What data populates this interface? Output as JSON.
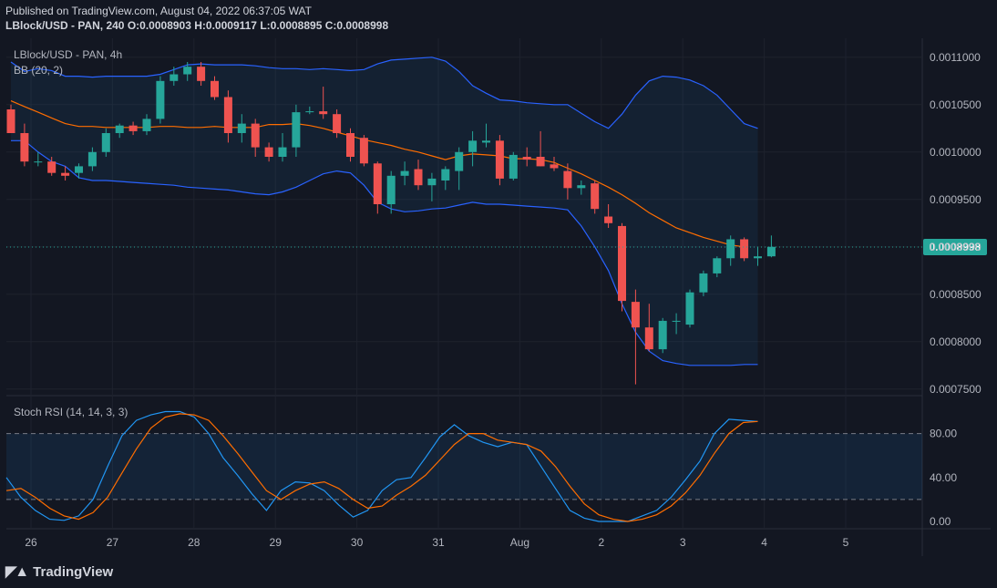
{
  "header": {
    "published": "Published on TradingView.com, August 04, 2022 06:37:05 WAT",
    "symbol_line": "LBlock/USD - PAN, 240",
    "ohlc": {
      "O": "0.0008903",
      "H": "0.0009117",
      "L": "0.0008895",
      "C": "0.0008998"
    }
  },
  "legend": {
    "symbol": "LBlock/USD - PAN, 4h",
    "bb": "BB (20, 2)",
    "stoch": "Stoch RSI (14, 14, 3, 3)"
  },
  "price_tag": "0.0008998",
  "brand": "TradingView",
  "colors": {
    "up": "#26a69a",
    "down": "#ef5350",
    "bb_band": "#2962ff",
    "bb_basis": "#ff6d00",
    "k_line": "#2196f3",
    "d_line": "#ff6d00"
  },
  "chart_data": [
    {
      "type": "candlestick",
      "title": "LBlock/USD - PAN, 4h",
      "x_tick_labels": [
        "26",
        "27",
        "28",
        "29",
        "30",
        "31",
        "Aug",
        "2",
        "3",
        "4",
        "5"
      ],
      "y_tick_labels": [
        "0.0011000",
        "0.0010500",
        "0.0010000",
        "0.0009500",
        "0.0009000",
        "0.0008500",
        "0.0008000",
        "0.0007500"
      ],
      "ylim": [
        0.000745,
        0.00112
      ],
      "last_price": 0.0008998,
      "candles": [
        {
          "o": 0.001045,
          "h": 0.00105,
          "l": 0.00102,
          "c": 0.00102
        },
        {
          "o": 0.00102,
          "h": 0.00103,
          "l": 0.000985,
          "c": 0.00099
        },
        {
          "o": 0.00099,
          "h": 0.001,
          "l": 0.000985,
          "c": 0.00099
        },
        {
          "o": 0.00099,
          "h": 0.000995,
          "l": 0.000975,
          "c": 0.000978
        },
        {
          "o": 0.000978,
          "h": 0.000985,
          "l": 0.00097,
          "c": 0.000975
        },
        {
          "o": 0.000978,
          "h": 0.000988,
          "l": 0.000972,
          "c": 0.000985
        },
        {
          "o": 0.000985,
          "h": 0.001005,
          "l": 0.00098,
          "c": 0.001
        },
        {
          "o": 0.001,
          "h": 0.001025,
          "l": 0.000995,
          "c": 0.00102
        },
        {
          "o": 0.00102,
          "h": 0.00103,
          "l": 0.001015,
          "c": 0.001028
        },
        {
          "o": 0.001028,
          "h": 0.001032,
          "l": 0.001018,
          "c": 0.001022
        },
        {
          "o": 0.001022,
          "h": 0.00104,
          "l": 0.001018,
          "c": 0.001035
        },
        {
          "o": 0.001035,
          "h": 0.00108,
          "l": 0.00103,
          "c": 0.001075
        },
        {
          "o": 0.001075,
          "h": 0.00109,
          "l": 0.00107,
          "c": 0.001082
        },
        {
          "o": 0.001082,
          "h": 0.001095,
          "l": 0.001075,
          "c": 0.00109
        },
        {
          "o": 0.00109,
          "h": 0.001095,
          "l": 0.00107,
          "c": 0.001075
        },
        {
          "o": 0.001075,
          "h": 0.00108,
          "l": 0.001055,
          "c": 0.001058
        },
        {
          "o": 0.001058,
          "h": 0.001065,
          "l": 0.00101,
          "c": 0.00102
        },
        {
          "o": 0.00102,
          "h": 0.00104,
          "l": 0.00101,
          "c": 0.00103
        },
        {
          "o": 0.00103,
          "h": 0.001035,
          "l": 0.000995,
          "c": 0.001005
        },
        {
          "o": 0.001005,
          "h": 0.00101,
          "l": 0.00099,
          "c": 0.000995
        },
        {
          "o": 0.000995,
          "h": 0.00102,
          "l": 0.00099,
          "c": 0.001005
        },
        {
          "o": 0.001005,
          "h": 0.00105,
          "l": 0.000995,
          "c": 0.001042
        },
        {
          "o": 0.001042,
          "h": 0.001048,
          "l": 0.00104,
          "c": 0.001043
        },
        {
          "o": 0.001043,
          "h": 0.001069,
          "l": 0.001035,
          "c": 0.00104
        },
        {
          "o": 0.00104,
          "h": 0.001045,
          "l": 0.001015,
          "c": 0.00102
        },
        {
          "o": 0.00102,
          "h": 0.001025,
          "l": 0.00099,
          "c": 0.000995
        },
        {
          "o": 0.001015,
          "h": 0.001018,
          "l": 0.000985,
          "c": 0.000988
        },
        {
          "o": 0.000988,
          "h": 0.00099,
          "l": 0.000935,
          "c": 0.000945
        },
        {
          "o": 0.000945,
          "h": 0.00098,
          "l": 0.000935,
          "c": 0.000975
        },
        {
          "o": 0.000975,
          "h": 0.00099,
          "l": 0.000965,
          "c": 0.00098
        },
        {
          "o": 0.000982,
          "h": 0.000992,
          "l": 0.00096,
          "c": 0.000965
        },
        {
          "o": 0.000965,
          "h": 0.000978,
          "l": 0.000948,
          "c": 0.000972
        },
        {
          "o": 0.00097,
          "h": 0.000985,
          "l": 0.00096,
          "c": 0.000982
        },
        {
          "o": 0.00098,
          "h": 0.001005,
          "l": 0.00096,
          "c": 0.001
        },
        {
          "o": 0.001,
          "h": 0.001022,
          "l": 0.000985,
          "c": 0.001012
        },
        {
          "o": 0.00101,
          "h": 0.00103,
          "l": 0.001005,
          "c": 0.001012
        },
        {
          "o": 0.001012,
          "h": 0.001018,
          "l": 0.000965,
          "c": 0.000972
        },
        {
          "o": 0.000972,
          "h": 0.001,
          "l": 0.00097,
          "c": 0.000997
        },
        {
          "o": 0.000995,
          "h": 0.001005,
          "l": 0.000985,
          "c": 0.000992
        },
        {
          "o": 0.000995,
          "h": 0.001022,
          "l": 0.000985,
          "c": 0.000985
        },
        {
          "o": 0.000987,
          "h": 0.000995,
          "l": 0.00098,
          "c": 0.000983
        },
        {
          "o": 0.00098,
          "h": 0.000988,
          "l": 0.00095,
          "c": 0.000962
        },
        {
          "o": 0.000962,
          "h": 0.00097,
          "l": 0.000955,
          "c": 0.000965
        },
        {
          "o": 0.000967,
          "h": 0.00097,
          "l": 0.000935,
          "c": 0.00094
        },
        {
          "o": 0.000932,
          "h": 0.000945,
          "l": 0.00092,
          "c": 0.000925
        },
        {
          "o": 0.000922,
          "h": 0.000925,
          "l": 0.000832,
          "c": 0.000843
        },
        {
          "o": 0.000842,
          "h": 0.000855,
          "l": 0.000755,
          "c": 0.000815
        },
        {
          "o": 0.000815,
          "h": 0.00084,
          "l": 0.00079,
          "c": 0.000792
        },
        {
          "o": 0.000792,
          "h": 0.000825,
          "l": 0.000788,
          "c": 0.000822
        },
        {
          "o": 0.000822,
          "h": 0.00083,
          "l": 0.000808,
          "c": 0.000822
        },
        {
          "o": 0.000818,
          "h": 0.000855,
          "l": 0.000815,
          "c": 0.000852
        },
        {
          "o": 0.000852,
          "h": 0.000875,
          "l": 0.000848,
          "c": 0.000872
        },
        {
          "o": 0.000872,
          "h": 0.00089,
          "l": 0.000868,
          "c": 0.000888
        },
        {
          "o": 0.000888,
          "h": 0.000912,
          "l": 0.00088,
          "c": 0.000908
        },
        {
          "o": 0.000908,
          "h": 0.00091,
          "l": 0.000885,
          "c": 0.000888
        },
        {
          "o": 0.000888,
          "h": 0.0009,
          "l": 0.00088,
          "c": 0.00089
        },
        {
          "o": 0.00089,
          "h": 0.000912,
          "l": 0.000889,
          "c": 0.0009
        }
      ],
      "bb_upper": [
        0.001095,
        0.001085,
        0.001088,
        0.001086,
        0.00108,
        0.00108,
        0.001079,
        0.00108,
        0.00108,
        0.00108,
        0.00108,
        0.001082,
        0.001087,
        0.001092,
        0.001093,
        0.001092,
        0.001092,
        0.001092,
        0.001091,
        0.001089,
        0.001088,
        0.001088,
        0.001087,
        0.001088,
        0.001087,
        0.001086,
        0.001087,
        0.001093,
        0.001097,
        0.001098,
        0.001099,
        0.0011,
        0.001096,
        0.001085,
        0.00107,
        0.001062,
        0.001055,
        0.001054,
        0.001052,
        0.001051,
        0.00105,
        0.00105,
        0.001041,
        0.001032,
        0.001025,
        0.00104,
        0.00106,
        0.001075,
        0.00108,
        0.001079,
        0.001076,
        0.00107,
        0.00106,
        0.001045,
        0.00103,
        0.001025
      ],
      "bb_basis": [
        0.001054,
        0.001048,
        0.001042,
        0.001036,
        0.00103,
        0.001027,
        0.001027,
        0.001026,
        0.001026,
        0.001026,
        0.001026,
        0.001027,
        0.001027,
        0.001026,
        0.001026,
        0.001027,
        0.001026,
        0.001026,
        0.001026,
        0.001029,
        0.001029,
        0.00103,
        0.001028,
        0.001025,
        0.001021,
        0.001017,
        0.001013,
        0.00101,
        0.001007,
        0.001003,
        0.001,
        0.000996,
        0.000992,
        0.000996,
        0.000998,
        0.000997,
        0.000996,
        0.000993,
        0.000993,
        0.000992,
        0.000989,
        0.000983,
        0.000977,
        0.00097,
        0.000963,
        0.000955,
        0.000946,
        0.000936,
        0.000928,
        0.00092,
        0.000915,
        0.00091,
        0.000906,
        0.000902,
        0.0009
      ],
      "bb_lower": [
        0.001012,
        0.001012,
        0.001,
        0.00099,
        0.000985,
        0.000973,
        0.00097,
        0.00097,
        0.000969,
        0.000968,
        0.000967,
        0.000966,
        0.000965,
        0.000963,
        0.000962,
        0.000961,
        0.00096,
        0.000958,
        0.000956,
        0.000955,
        0.000958,
        0.000963,
        0.00097,
        0.000977,
        0.00098,
        0.000978,
        0.000965,
        0.000947,
        0.00094,
        0.000937,
        0.000938,
        0.00094,
        0.000941,
        0.000944,
        0.000947,
        0.000945,
        0.000945,
        0.000944,
        0.000943,
        0.000942,
        0.000941,
        0.000939,
        0.000922,
        0.0009,
        0.000875,
        0.00084,
        0.00081,
        0.00079,
        0.00078,
        0.000777,
        0.000775,
        0.000775,
        0.000775,
        0.000775,
        0.000776,
        0.000776
      ]
    },
    {
      "type": "line",
      "title": "Stoch RSI (14, 14, 3, 3)",
      "y_tick_labels": [
        "80.00",
        "40.00",
        "0.00"
      ],
      "ylim": [
        -5,
        112
      ],
      "bands": [
        20,
        80
      ],
      "series": [
        {
          "values": [
            40,
            22,
            10,
            2,
            1,
            5,
            20,
            50,
            78,
            92,
            97,
            100,
            100,
            95,
            80,
            58,
            42,
            25,
            10,
            28,
            36,
            35,
            28,
            15,
            4,
            10,
            28,
            38,
            40,
            58,
            77,
            88,
            78,
            72,
            68,
            72,
            70,
            50,
            30,
            10,
            3,
            0,
            0,
            0,
            5,
            10,
            22,
            38,
            55,
            80,
            93,
            92,
            91
          ]
        },
        {
          "values": [
            28,
            30,
            22,
            12,
            5,
            2,
            8,
            22,
            44,
            66,
            85,
            95,
            98,
            97,
            92,
            78,
            62,
            45,
            28,
            20,
            28,
            34,
            36,
            30,
            20,
            12,
            14,
            24,
            32,
            42,
            56,
            70,
            80,
            80,
            74,
            72,
            70,
            64,
            50,
            32,
            16,
            6,
            2,
            0,
            2,
            6,
            14,
            26,
            42,
            62,
            80,
            90,
            91
          ]
        }
      ]
    }
  ]
}
